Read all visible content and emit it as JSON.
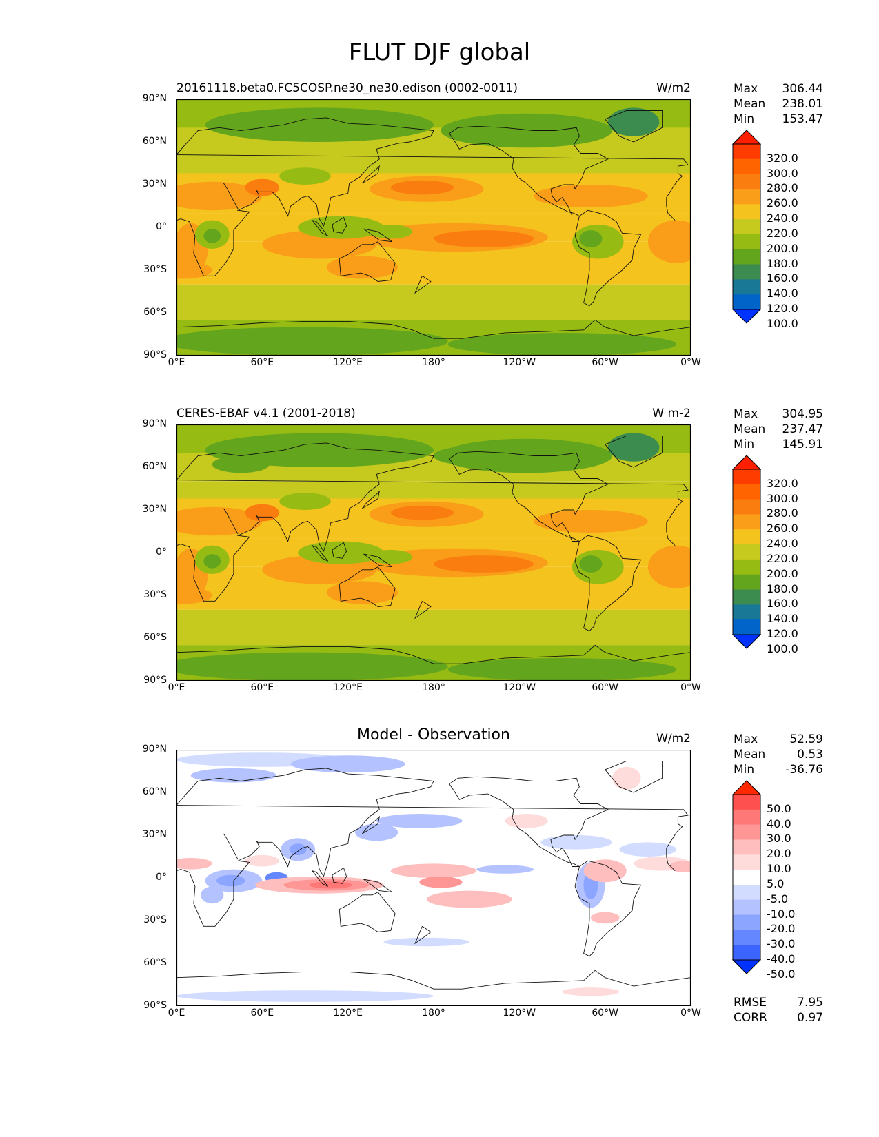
{
  "figure": {
    "title": "FLUT DJF global"
  },
  "axes": {
    "y_ticks": [
      "90°N",
      "60°N",
      "30°N",
      "0°",
      "30°S",
      "60°S",
      "90°S"
    ],
    "x_ticks": [
      "0°E",
      "60°E",
      "120°E",
      "180°",
      "120°W",
      "60°W",
      "0°W"
    ]
  },
  "colors": {
    "abs_levels": [
      "#0032ff",
      "#0064c8",
      "#197896",
      "#3c8c50",
      "#64a51e",
      "#96bc14",
      "#c6c91e",
      "#f5c31e",
      "#fa9e19",
      "#fa7d0f",
      "#ff6400",
      "#ff3c00",
      "#ff1e00"
    ],
    "diff_levels": [
      "#0032ff",
      "#3c64ff",
      "#6486ff",
      "#8ca5ff",
      "#b4c3ff",
      "#d2dcff",
      "#ffffff",
      "#ffdcdc",
      "#ffbebe",
      "#ff9696",
      "#ff7878",
      "#ff5050",
      "#ff2800"
    ]
  },
  "panels": [
    {
      "title_left": "20161118.beta0.FC5COSP.ne30_ne30.edison (0002-0011)",
      "title_center": "",
      "units": "W/m2",
      "stats": [
        {
          "label": "Max",
          "value": "306.44"
        },
        {
          "label": "Mean",
          "value": "238.01"
        },
        {
          "label": "Min",
          "value": "153.47"
        }
      ],
      "colorbar_labels": [
        "320.0",
        "300.0",
        "280.0",
        "260.0",
        "240.0",
        "220.0",
        "200.0",
        "180.0",
        "160.0",
        "140.0",
        "120.0",
        "100.0"
      ],
      "extra_stats": []
    },
    {
      "title_left": "CERES-EBAF v4.1 (2001-2018)",
      "title_center": "",
      "units": "W m-2",
      "stats": [
        {
          "label": "Max",
          "value": "304.95"
        },
        {
          "label": "Mean",
          "value": "237.47"
        },
        {
          "label": "Min",
          "value": "145.91"
        }
      ],
      "colorbar_labels": [
        "320.0",
        "300.0",
        "280.0",
        "260.0",
        "240.0",
        "220.0",
        "200.0",
        "180.0",
        "160.0",
        "140.0",
        "120.0",
        "100.0"
      ],
      "extra_stats": []
    },
    {
      "title_left": "",
      "title_center": "Model - Observation",
      "units": "W/m2",
      "stats": [
        {
          "label": "Max",
          "value": "52.59"
        },
        {
          "label": "Mean",
          "value": "0.53"
        },
        {
          "label": "Min",
          "value": "-36.76"
        }
      ],
      "colorbar_labels": [
        "50.0",
        "40.0",
        "30.0",
        "20.0",
        "10.0",
        "5.0",
        "-5.0",
        "-10.0",
        "-20.0",
        "-30.0",
        "-40.0",
        "-50.0"
      ],
      "extra_stats": [
        {
          "label": "RMSE",
          "value": "7.95"
        },
        {
          "label": "CORR",
          "value": "0.97"
        }
      ]
    }
  ]
}
